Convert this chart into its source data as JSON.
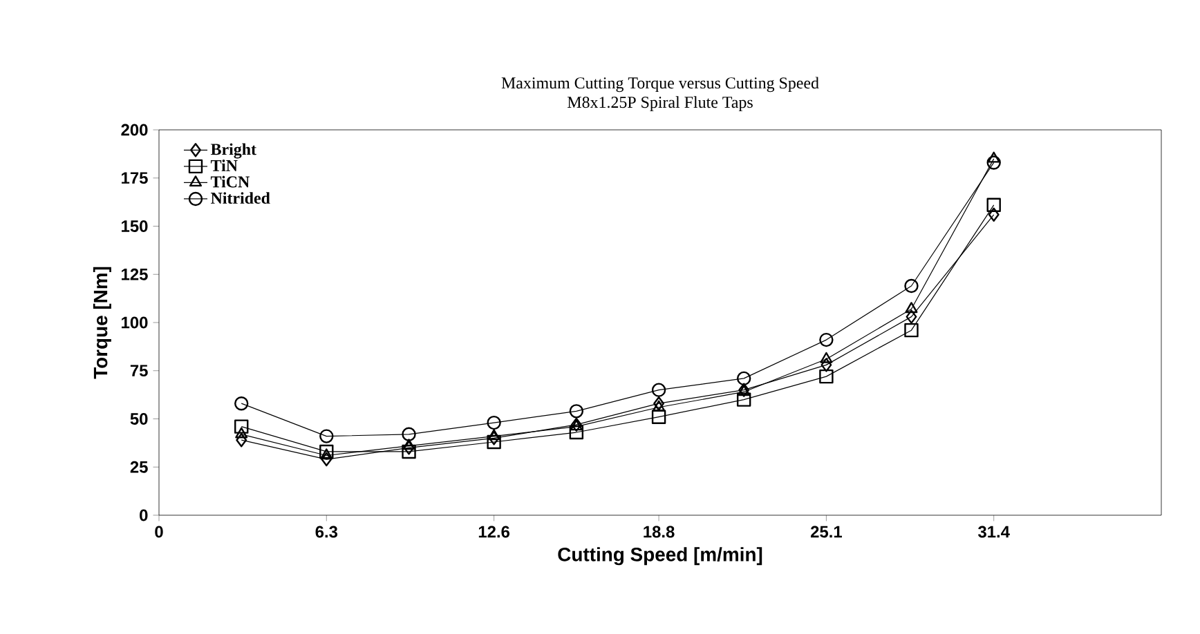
{
  "chart_data": {
    "type": "line",
    "title": "Maximum Cutting Torque versus Cutting Speed",
    "subtitle": "M8x1.25P Spiral Flute Taps",
    "xlabel": "Cutting Speed [m/min]",
    "ylabel": "Torque [Nm]",
    "x": [
      3.1,
      6.3,
      9.4,
      12.6,
      15.7,
      18.8,
      22.0,
      25.1,
      28.3,
      31.4
    ],
    "series": [
      {
        "name": "Bright",
        "color": "#000000",
        "marker": "diamond",
        "values": [
          39,
          29,
          35,
          40,
          47,
          58,
          65,
          78,
          103,
          156
        ]
      },
      {
        "name": "TiN",
        "color": "#000000",
        "marker": "square",
        "values": [
          46,
          33,
          33,
          38,
          43,
          51,
          60,
          72,
          96,
          161
        ]
      },
      {
        "name": "TiCN",
        "color": "#000000",
        "marker": "triangle",
        "values": [
          42,
          31,
          36,
          41,
          46,
          56,
          64,
          81,
          107,
          185
        ]
      },
      {
        "name": "Nitrided",
        "color": "#000000",
        "marker": "circle",
        "values": [
          58,
          41,
          42,
          48,
          54,
          65,
          71,
          91,
          119,
          183
        ]
      }
    ],
    "xlim": [
      0,
      37.7
    ],
    "xticks": [
      0,
      6.3,
      12.6,
      18.8,
      25.1,
      31.4
    ],
    "ylim": [
      0,
      200
    ],
    "yticks": [
      0,
      25,
      50,
      75,
      100,
      125,
      150,
      175,
      200
    ],
    "grid": false,
    "legend": "top left",
    "line_style": "solid"
  }
}
